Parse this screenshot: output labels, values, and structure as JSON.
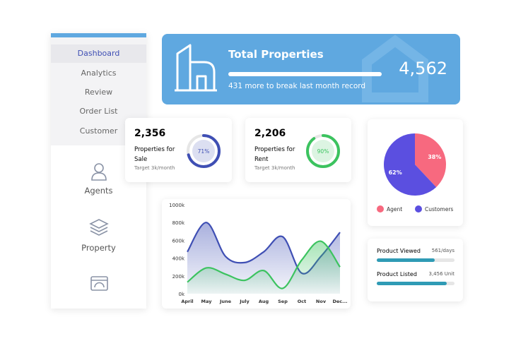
{
  "sidebar": {
    "menu": [
      "Dashboard",
      "Analytics",
      "Review",
      "Order List",
      "Customer"
    ],
    "items": [
      "Agents",
      "Property"
    ]
  },
  "banner": {
    "title": "Total Properties",
    "note": "431 more to break last month record",
    "value": "4,562"
  },
  "cards": [
    {
      "value": "2,356",
      "label": "Properties for Sale",
      "target": "Target 3k/month",
      "percent": 71,
      "percent_label": "71%",
      "color": "#3f4fb4"
    },
    {
      "value": "2,206",
      "label": "Properties for Rent",
      "target": "Target 3k/month",
      "percent": 90,
      "percent_label": "90%",
      "color": "#3cc35f"
    }
  ],
  "chart_data": [
    {
      "type": "pie",
      "categories": [
        "Agent",
        "Customers"
      ],
      "values": [
        38,
        62
      ],
      "value_labels": [
        "38%",
        "62%"
      ],
      "colors": [
        "#f7697f",
        "#5b4fe0"
      ]
    },
    {
      "type": "line",
      "categories": [
        "April",
        "May",
        "June",
        "July",
        "Aug",
        "Sep",
        "Oct",
        "Nov",
        "Dec..."
      ],
      "series": [
        {
          "color": "#3f4fb4",
          "values": [
            470,
            800,
            420,
            350,
            470,
            640,
            230,
            420,
            690
          ]
        },
        {
          "color": "#3cc35f",
          "values": [
            130,
            290,
            220,
            150,
            260,
            60,
            380,
            590,
            300
          ]
        }
      ],
      "ylim": [
        0,
        1000
      ],
      "yticks": [
        {
          "value": 0,
          "label": "0k"
        },
        {
          "value": 200,
          "label": "200k"
        },
        {
          "value": 400,
          "label": "400k"
        },
        {
          "value": 600,
          "label": "600k"
        },
        {
          "value": 800,
          "label": "800k"
        },
        {
          "value": 1000,
          "label": "1000k"
        }
      ]
    }
  ],
  "products": [
    {
      "label": "Product Viewed",
      "value": "561/days"
    },
    {
      "label": "Product Listed",
      "value": "3,456 Unit"
    }
  ]
}
